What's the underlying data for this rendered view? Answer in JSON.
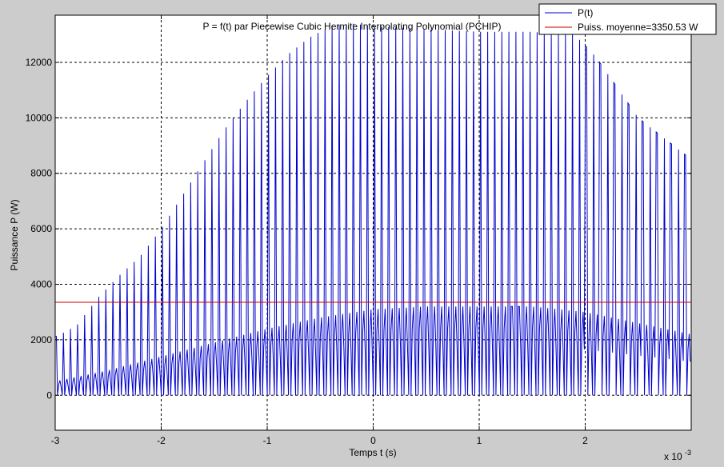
{
  "chart_data": {
    "type": "line",
    "title": "P = f(t) par Piecewise Cubic Hermite Interpolating Polynomial (PCHIP)",
    "xlabel": "Temps t (s)",
    "ylabel": "Puissance P (W)",
    "x_multiplier_label": "x 10",
    "x_multiplier_exponent": "-3",
    "xlim": [
      -3,
      3
    ],
    "ylim": [
      -1260,
      13700
    ],
    "x_ticks": [
      -3,
      -2,
      -1,
      0,
      1,
      2
    ],
    "x_tick_labels": [
      "-3",
      "-2",
      "-1",
      "0",
      "1",
      "2"
    ],
    "y_ticks": [
      0,
      2000,
      4000,
      6000,
      8000,
      10000,
      12000
    ],
    "y_tick_labels": [
      "0",
      "2000",
      "4000",
      "6000",
      "8000",
      "10000",
      "12000"
    ],
    "grid": true,
    "legend_position": "top-right",
    "series": [
      {
        "name": "P(t)",
        "color": "#0000cc",
        "kind": "oscillating",
        "period_ms": 0.0667,
        "peak_envelope": {
          "t": [
            -3.0,
            -2.8,
            -2.6,
            -2.4,
            -2.2,
            -2.0,
            -1.8,
            -1.6,
            -1.4,
            -1.2,
            -1.0,
            -0.8,
            -0.6,
            -0.4,
            -0.2,
            0.0,
            0.5,
            1.0,
            1.5,
            1.9,
            2.1,
            2.3,
            2.5,
            2.7,
            2.9,
            3.0
          ],
          "p": [
            2100,
            2500,
            3500,
            4300,
            5000,
            6000,
            7200,
            8400,
            9600,
            10600,
            11500,
            12300,
            12900,
            13300,
            13400,
            13300,
            13200,
            13100,
            13100,
            13000,
            12200,
            11100,
            10000,
            9400,
            8800,
            8500
          ]
        },
        "mean_envelope": {
          "t": [
            -3.0,
            -2.5,
            -2.0,
            -1.5,
            -1.0,
            -0.5,
            0.0,
            0.5,
            1.0,
            1.5,
            2.0,
            2.5,
            3.0
          ],
          "p": [
            500,
            900,
            1400,
            1900,
            2400,
            2800,
            3100,
            3200,
            3200,
            3200,
            3000,
            2600,
            2200
          ]
        },
        "trough": 0
      },
      {
        "name": "Puiss. moyenne=3350.53 W",
        "color": "#cc0000",
        "kind": "constant",
        "value": 3350.53
      }
    ]
  }
}
